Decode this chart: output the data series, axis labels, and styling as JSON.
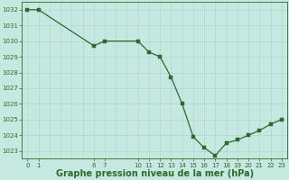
{
  "x": [
    0,
    1,
    6,
    7,
    10,
    11,
    12,
    13,
    14,
    15,
    16,
    17,
    18,
    19,
    20,
    21,
    22,
    23
  ],
  "y": [
    1032,
    1032,
    1029.7,
    1030,
    1030,
    1029.3,
    1029.0,
    1027.7,
    1026.0,
    1023.9,
    1023.2,
    1022.7,
    1023.5,
    1023.7,
    1024.0,
    1024.3,
    1024.7,
    1025.0
  ],
  "line_color": "#2d6a2d",
  "marker_color": "#2d6a2d",
  "bg_color": "#c5e8e0",
  "grid_color": "#b0d4c8",
  "grid_color2": "#c0dcd4",
  "ylim": [
    1022.5,
    1032.5
  ],
  "yticks": [
    1023,
    1024,
    1025,
    1026,
    1027,
    1028,
    1029,
    1030,
    1031,
    1032
  ],
  "xticks_major": [
    0,
    1,
    6,
    7,
    10,
    11,
    12,
    13,
    14,
    15,
    16,
    17,
    18,
    19,
    20,
    21,
    22,
    23
  ],
  "xlabel": "Graphe pression niveau de la mer (hPa)",
  "tick_fontsize": 5.0,
  "label_fontsize": 7.0
}
